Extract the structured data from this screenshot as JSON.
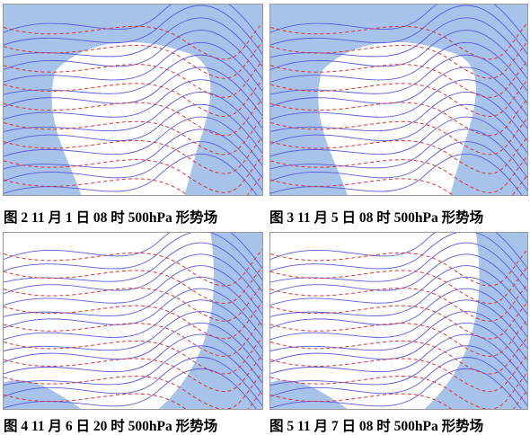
{
  "figures": [
    {
      "caption": "图 2 11 月 1 日 08 时 500hPa 形势场"
    },
    {
      "caption": "图 3 11 月 5 日 08 时 500hPa 形势场"
    },
    {
      "caption": "图 4 11 月 6 日 20 时 500hPa 形势场"
    },
    {
      "caption": "图 5 11 月 7 日 08 时 500hPa 形势场"
    }
  ]
}
